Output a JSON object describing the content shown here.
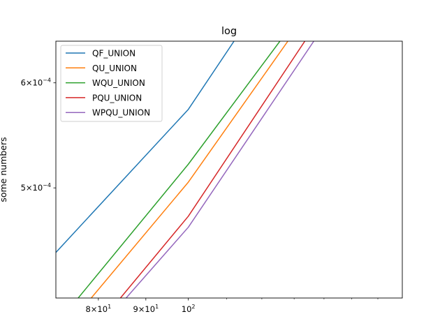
{
  "chart_data": {
    "type": "line",
    "title": "log",
    "xlabel": "",
    "ylabel": "some numbers",
    "xscale": "log",
    "yscale": "log",
    "xlim": [
      72,
      170
    ],
    "ylim": [
      0.000413,
      0.000645
    ],
    "grid": false,
    "legend_position": "top-left",
    "x_ticks": [
      {
        "value": 80,
        "base": "8×10",
        "exp": "1"
      },
      {
        "value": 90,
        "base": "9×10",
        "exp": "1"
      },
      {
        "value": 100,
        "base": "10",
        "exp": "2"
      }
    ],
    "y_ticks": [
      {
        "value": 0.0005,
        "base": "5×10",
        "exp": "−4"
      },
      {
        "value": 0.0006,
        "base": "6×10",
        "exp": "−4"
      }
    ],
    "series": [
      {
        "name": "QF_UNION",
        "color": "#1f77b4",
        "points": [
          [
            72,
            0.000447
          ],
          [
            100,
            0.000573
          ],
          [
            112,
            0.000645
          ]
        ]
      },
      {
        "name": "QU_UNION",
        "color": "#ff7f0e",
        "points": [
          [
            78.6,
            0.000413
          ],
          [
            100,
            0.000505
          ],
          [
            128,
            0.000645
          ]
        ]
      },
      {
        "name": "WQU_UNION",
        "color": "#2ca02c",
        "points": [
          [
            76.1,
            0.000413
          ],
          [
            100,
            0.000521
          ],
          [
            125.5,
            0.000645
          ]
        ]
      },
      {
        "name": "PQU_UNION",
        "color": "#d62728",
        "points": [
          [
            84.5,
            0.000413
          ],
          [
            100,
            0.000476
          ],
          [
            133.5,
            0.000645
          ]
        ]
      },
      {
        "name": "WPQU_UNION",
        "color": "#9467bd",
        "points": [
          [
            85.7,
            0.000413
          ],
          [
            100,
            0.000467
          ],
          [
            136.5,
            0.000645
          ]
        ]
      }
    ]
  }
}
